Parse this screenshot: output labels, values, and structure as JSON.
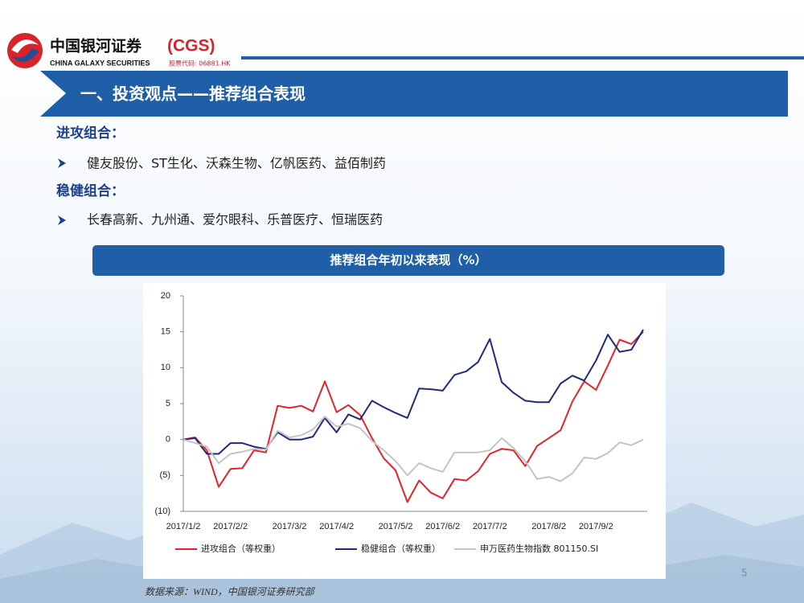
{
  "header": {
    "logo_cn": "中国银河证券",
    "logo_abbr": "(CGS)",
    "logo_en": "CHINA GALAXY SECURITIES",
    "stock_code": "股票代码: 06881.HK",
    "section_title": "一、投资观点——推荐组合表现"
  },
  "portfolios": [
    {
      "heading": "进攻组合：",
      "stocks": "健友股份、ST生化、沃森生物、亿帆医药、益佰制药"
    },
    {
      "heading": "稳健组合：",
      "stocks": "长春高新、九州通、爱尔眼科、乐普医疗、恒瑞医药"
    }
  ],
  "chart_data": {
    "type": "line",
    "title": "推荐组合年初以来表现（%）",
    "categories": [
      "2017/1/2",
      null,
      null,
      null,
      "2017/2/2",
      null,
      null,
      null,
      null,
      "2017/3/2",
      null,
      null,
      null,
      "2017/4/2",
      null,
      null,
      null,
      null,
      "2017/5/2",
      null,
      null,
      null,
      "2017/6/2",
      null,
      null,
      null,
      "2017/7/2",
      null,
      null,
      null,
      null,
      "2017/8/2",
      null,
      null,
      null,
      "2017/9/2",
      null,
      null,
      null,
      null
    ],
    "series": [
      {
        "name": "进攻组合（等权重）",
        "color": "#e3232a",
        "values": [
          0,
          0.3,
          -1.5,
          -6.6,
          -4.1,
          -4.0,
          -1.5,
          -1.8,
          4.7,
          4.4,
          4.7,
          3.9,
          8.1,
          3.8,
          4.8,
          3.4,
          0.2,
          -2.6,
          -4.3,
          -8.7,
          -5.7,
          -7.4,
          -8.2,
          -5.5,
          -5.7,
          -4.4,
          -2.0,
          -1.3,
          -1.5,
          -3.7,
          -0.9,
          0.2,
          1.3,
          5.3,
          8.1,
          6.9,
          10.3,
          13.9,
          13.3,
          15.0
        ]
      },
      {
        "name": "稳健组合（等权重）",
        "color": "#1f2a7a",
        "values": [
          0,
          0.2,
          -2,
          -2,
          -0.5,
          -0.5,
          -1,
          -1.3,
          1,
          0,
          0,
          0.4,
          3,
          1,
          3.5,
          2.8,
          5.4,
          4.5,
          3.7,
          3,
          7.1,
          7,
          6.8,
          9,
          9.5,
          10.8,
          14,
          8,
          6.5,
          5.4,
          5.2,
          5.2,
          7.8,
          8.9,
          8.2,
          11,
          14.6,
          12.2,
          12.5,
          15.3
        ]
      },
      {
        "name": "申万医药生物指数 801150.SI",
        "color": "#c4c4c4",
        "values": [
          0,
          -0.5,
          -1,
          -3.3,
          -2,
          -1.7,
          -1.3,
          -1.4,
          1.2,
          0.3,
          0.6,
          1.4,
          3.2,
          1.8,
          2.2,
          1.6,
          -0.2,
          -1.5,
          -3,
          -5,
          -3.3,
          -4,
          -4.5,
          -1.8,
          -1.8,
          -1.8,
          -1.5,
          0.2,
          -1.2,
          -3,
          -5.5,
          -5.2,
          -5.8,
          -4.7,
          -2.5,
          -2.7,
          -1.9,
          -0.4,
          -0.8,
          0
        ]
      }
    ],
    "ylim": [
      -10,
      20
    ],
    "yticks": [
      20,
      15,
      10,
      5,
      0,
      {
        "value": -5,
        "label": "(5)"
      },
      {
        "value": -10,
        "label": "(10)"
      }
    ],
    "grid": false,
    "legend": "bottom"
  },
  "source": "数据来源：WIND，中国银河证券研究部",
  "page_number": "5"
}
